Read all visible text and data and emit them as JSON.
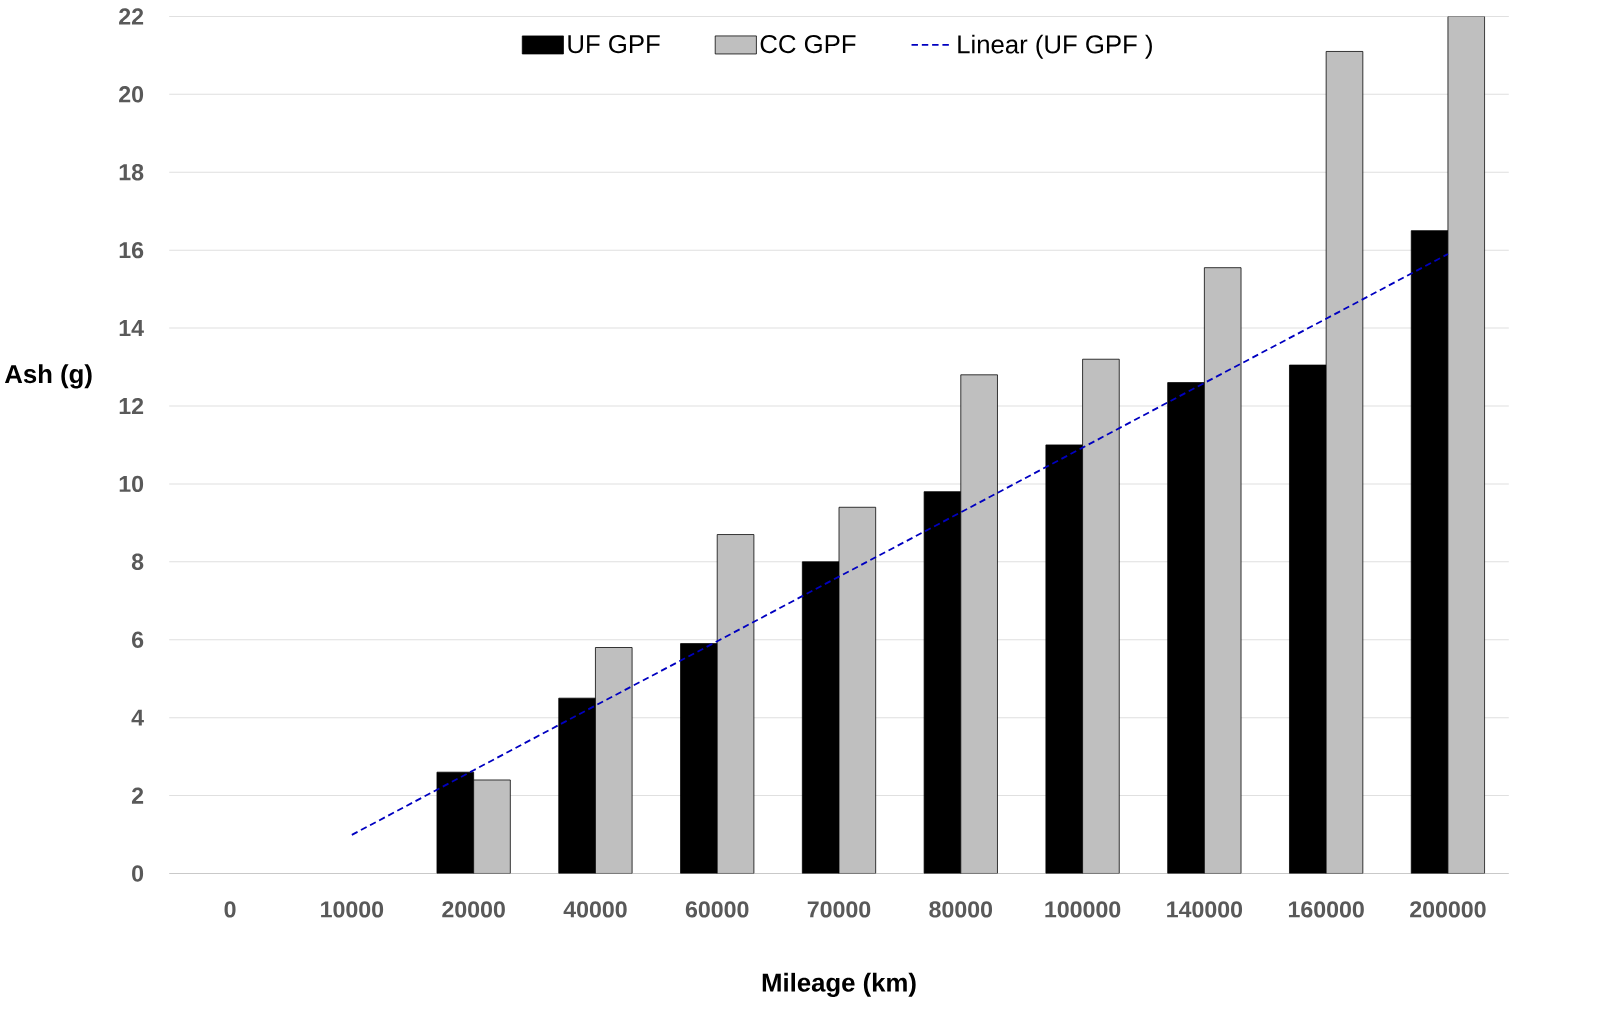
{
  "chart_data": {
    "type": "bar",
    "xlabel": "Mileage (km)",
    "ylabel": "Ash (g)",
    "categories": [
      "0",
      "10000",
      "20000",
      "40000",
      "60000",
      "70000",
      "80000",
      "100000",
      "140000",
      "160000",
      "200000"
    ],
    "series": [
      {
        "name": "UF  GPF",
        "color": "#000000",
        "values": [
          null,
          null,
          2.6,
          4.5,
          5.9,
          8.0,
          9.8,
          11.0,
          12.6,
          13.05,
          16.5
        ]
      },
      {
        "name": "CC GPF",
        "color": "#bfbfbf",
        "values": [
          null,
          null,
          2.4,
          5.8,
          8.7,
          9.4,
          12.8,
          13.2,
          15.55,
          21.1,
          22.0
        ]
      },
      {
        "name": "Linear (UF  GPF )",
        "type": "line",
        "line_style": "dashed",
        "marker": "none",
        "color": "#0000c0",
        "values": [
          null,
          0.99,
          2.65,
          4.31,
          5.96,
          7.62,
          9.27,
          10.93,
          12.59,
          14.24,
          15.9
        ]
      }
    ],
    "ylim": [
      0,
      22
    ],
    "yticks": [
      0,
      2,
      4,
      6,
      8,
      10,
      12,
      14,
      16,
      18,
      20,
      22
    ],
    "grid": "y",
    "legend": "top"
  }
}
